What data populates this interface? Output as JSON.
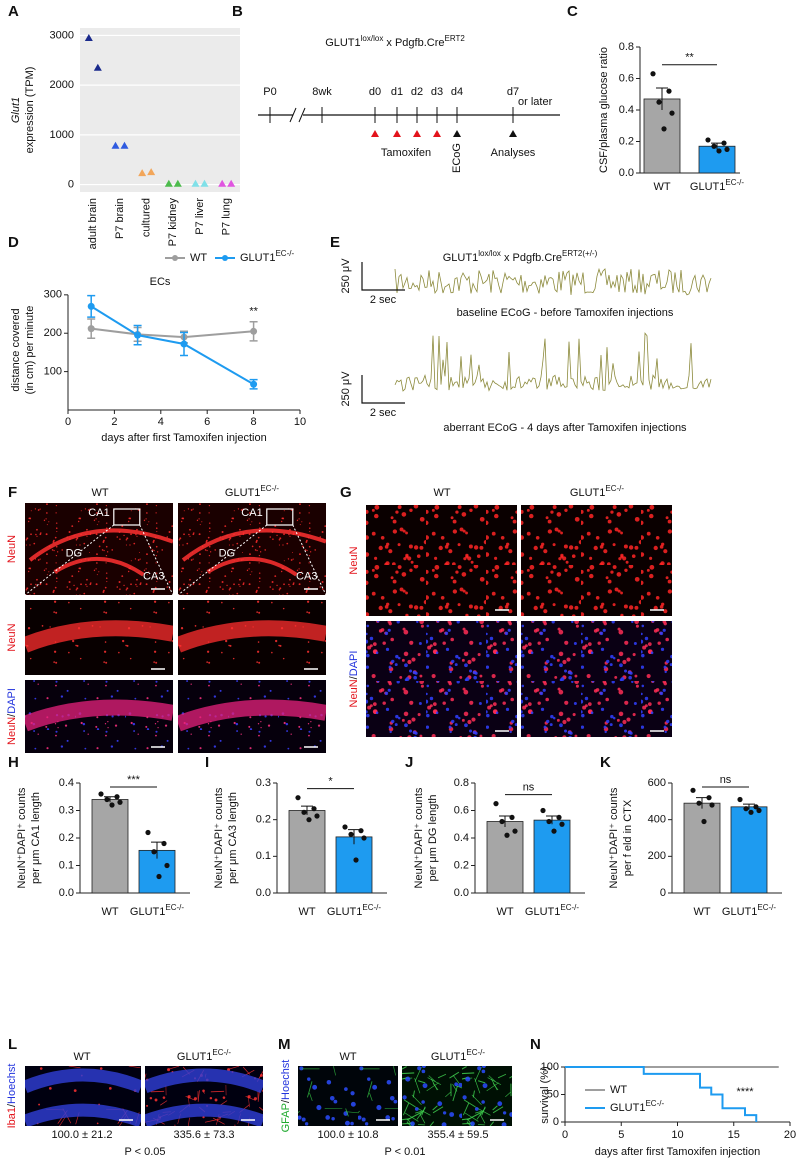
{
  "chart_data": [
    {
      "letter": "A",
      "type": "scatter",
      "ylabel": [
        "Glut1",
        "expression (TPM)"
      ],
      "xlabel": "ECs",
      "categories": [
        "adult brain",
        "P7 brain",
        "cultured",
        "P7 kidney",
        "P7 liver",
        "P7 lung"
      ],
      "values": [
        [
          2950,
          2350
        ],
        [
          780,
          780
        ],
        [
          230,
          250
        ],
        [
          15,
          15
        ],
        [
          15,
          15
        ],
        [
          15,
          15
        ]
      ],
      "colors": [
        "#1a2a8c",
        "#2f5be0",
        "#f2a65a",
        "#4cbb4c",
        "#7fe0e8",
        "#e055e0"
      ],
      "ylim": [
        -150,
        3150
      ],
      "yticks": [
        0,
        1000,
        2000,
        3000
      ],
      "grid": true
    },
    {
      "letter": "C",
      "type": "bar",
      "ylabel": [
        "CSF/plasma glucose ratio"
      ],
      "categories": [
        [
          "WT"
        ],
        [
          "GLUT1",
          "EC-/-"
        ]
      ],
      "values": [
        0.47,
        0.17
      ],
      "errors": [
        0.07,
        0.02
      ],
      "points": [
        [
          0.63,
          0.52,
          0.45,
          0.38,
          0.28
        ],
        [
          0.21,
          0.19,
          0.17,
          0.15,
          0.14
        ]
      ],
      "colors": [
        "#a6a6a6",
        "#1e9bf0"
      ],
      "ylim": [
        0,
        0.8
      ],
      "yticks": [
        {
          "value": 0,
          "label": "0.0"
        },
        0.2,
        0.4,
        0.6,
        0.8
      ],
      "significance": "**"
    },
    {
      "letter": "D",
      "type": "line",
      "ylabel": [
        "distance covered",
        "(in cm) per minute"
      ],
      "xlabel": "days after first Tamoxifen injection",
      "x": [
        1,
        3,
        5,
        8
      ],
      "xlim": [
        0,
        10
      ],
      "xticks": [
        0,
        2,
        4,
        6,
        8,
        10
      ],
      "ylim": [
        0,
        310
      ],
      "yticks": [
        100,
        200,
        300
      ],
      "legend": "top",
      "series": [
        {
          "name": [
            "WT"
          ],
          "color": "#9e9e9e",
          "values": [
            212,
            197,
            190,
            205
          ],
          "errors": [
            25,
            18,
            15,
            25
          ]
        },
        {
          "name": [
            "GLUT1",
            "EC-/-"
          ],
          "color": "#1e9bf0",
          "values": [
            270,
            195,
            172,
            67
          ],
          "errors": [
            28,
            25,
            30,
            12
          ]
        }
      ],
      "significance": [
        null,
        null,
        null,
        "**"
      ]
    },
    {
      "letter": "H",
      "type": "bar",
      "ylabel": [
        "NeuN⁺DAPI⁺ counts",
        "per μm CA1 length"
      ],
      "categories": [
        [
          "WT"
        ],
        [
          "GLUT1",
          "EC-/-"
        ]
      ],
      "values": [
        0.34,
        0.155
      ],
      "errors": [
        0.01,
        0.03
      ],
      "points": [
        [
          0.36,
          0.35,
          0.34,
          0.33,
          0.32
        ],
        [
          0.22,
          0.18,
          0.15,
          0.1,
          0.06
        ]
      ],
      "colors": [
        "#a6a6a6",
        "#1e9bf0"
      ],
      "ylim": [
        0,
        0.4
      ],
      "yticks": [
        {
          "value": 0,
          "label": "0.0"
        },
        0.1,
        0.2,
        0.3,
        0.4
      ],
      "significance": "***"
    },
    {
      "letter": "I",
      "type": "bar",
      "ylabel": [
        "NeuN⁺DAPI⁺ counts",
        "per μm CA3 length"
      ],
      "categories": [
        [
          "WT"
        ],
        [
          "GLUT1",
          "EC-/-"
        ]
      ],
      "values": [
        0.225,
        0.153
      ],
      "errors": [
        0.012,
        0.02
      ],
      "points": [
        [
          0.26,
          0.23,
          0.22,
          0.21,
          0.2
        ],
        [
          0.18,
          0.17,
          0.16,
          0.15,
          0.09
        ]
      ],
      "colors": [
        "#a6a6a6",
        "#1e9bf0"
      ],
      "ylim": [
        0,
        0.3
      ],
      "yticks": [
        {
          "value": 0,
          "label": "0.0"
        },
        0.1,
        0.2,
        0.3
      ],
      "significance": "*"
    },
    {
      "letter": "J",
      "type": "bar",
      "ylabel": [
        "NeuN⁺DAPI⁺ counts",
        "per μm DG length"
      ],
      "categories": [
        [
          "WT"
        ],
        [
          "GLUT1",
          "EC-/-"
        ]
      ],
      "values": [
        0.52,
        0.53
      ],
      "errors": [
        0.04,
        0.03
      ],
      "points": [
        [
          0.65,
          0.55,
          0.52,
          0.45,
          0.42
        ],
        [
          0.6,
          0.55,
          0.52,
          0.5,
          0.45
        ]
      ],
      "colors": [
        "#a6a6a6",
        "#1e9bf0"
      ],
      "ylim": [
        0,
        0.8
      ],
      "yticks": [
        {
          "value": 0,
          "label": "0.0"
        },
        0.2,
        0.4,
        0.6,
        0.8
      ],
      "significance": "ns"
    },
    {
      "letter": "K",
      "type": "bar",
      "ylabel": [
        "NeuN⁺DAPI⁺ counts",
        "per f eld in CTX"
      ],
      "categories": [
        [
          "WT"
        ],
        [
          "GLUT1",
          "EC-/-"
        ]
      ],
      "values": [
        490,
        470
      ],
      "errors": [
        30,
        15
      ],
      "points": [
        [
          560,
          520,
          490,
          480,
          390
        ],
        [
          510,
          470,
          460,
          450,
          440
        ]
      ],
      "colors": [
        "#a6a6a6",
        "#1e9bf0"
      ],
      "ylim": [
        0,
        600
      ],
      "yticks": [
        0,
        200,
        400,
        600
      ],
      "significance": "ns"
    },
    {
      "letter": "N",
      "type": "step",
      "ylabel": [
        "survival (%)"
      ],
      "xlabel": "days after first Tamoxifen injection",
      "xlim": [
        0,
        20
      ],
      "xticks": [
        0,
        5,
        10,
        15,
        20
      ],
      "ylim": [
        0,
        100
      ],
      "yticks": [
        0,
        50,
        100
      ],
      "legend": "bottom-left",
      "series": [
        {
          "name": [
            "WT"
          ],
          "color": "#9e9e9e",
          "x": [
            0,
            19
          ],
          "values": [
            100,
            100
          ]
        },
        {
          "name": [
            "GLUT1",
            "EC-/-"
          ],
          "color": "#1e9bf0",
          "x": [
            0,
            7,
            12,
            13,
            14,
            16,
            17
          ],
          "values": [
            100,
            87.5,
            62.5,
            50,
            25,
            12.5,
            0
          ]
        }
      ],
      "significance": "****"
    }
  ],
  "schematic": {
    "letter": "B",
    "title": [
      "GLUT1",
      "lox/lox",
      " x Pdgfb.Cre",
      "ERT2"
    ],
    "timepoints": [
      "P0",
      "8wk",
      "d0",
      "d1",
      "d2",
      "d3",
      "d4",
      "d7"
    ],
    "continuation": "or later",
    "treatment": "Tamoxifen",
    "recording": "ECoG",
    "endpoint": "Analyses"
  },
  "ecog": {
    "letter": "E",
    "title": [
      "GLUT1",
      "lox/lox",
      " x Pdgfb.Cre",
      "ERT2(+/-)"
    ],
    "traces": [
      {
        "amplitude_scale": "250 μV",
        "time_scale": "2 sec",
        "caption": "baseline ECoG - before Tamoxifen injections"
      },
      {
        "amplitude_scale": "250 μV",
        "time_scale": "2 sec",
        "caption": "aberrant ECoG - 4 days after Tamoxifen injections"
      }
    ]
  },
  "micrographs": [
    {
      "letter": "F",
      "columns": [
        [
          "WT"
        ],
        [
          "GLUT1",
          "EC-/-"
        ]
      ],
      "rows": [
        [
          "NeuN"
        ],
        [
          "NeuN"
        ],
        [
          "NeuN",
          "/",
          "DAPI"
        ]
      ],
      "regions": [
        "CA1",
        "DG",
        "CA3"
      ]
    },
    {
      "letter": "G",
      "columns": [
        [
          "WT"
        ],
        [
          "GLUT1",
          "EC-/-"
        ]
      ],
      "rows": [
        [
          "NeuN"
        ],
        [
          "NeuN",
          "/",
          "DAPI"
        ]
      ]
    },
    {
      "letter": "L",
      "columns": [
        [
          "WT"
        ],
        [
          "GLUT1",
          "EC-/-"
        ]
      ],
      "rows": [
        [
          "Iba1",
          "/",
          "Hoechst"
        ]
      ],
      "quantification": [
        "100.0 ± 21.2",
        "335.6 ± 73.3"
      ],
      "p_value": "P < 0.05"
    },
    {
      "letter": "M",
      "columns": [
        [
          "WT"
        ],
        [
          "GLUT1",
          "EC-/-"
        ]
      ],
      "rows": [
        [
          "GFAP",
          "/",
          "Hoechst"
        ]
      ],
      "quantification": [
        "100.0 ± 10.8",
        "355.4 ± 59.5"
      ],
      "p_value": "P < 0.01"
    }
  ]
}
